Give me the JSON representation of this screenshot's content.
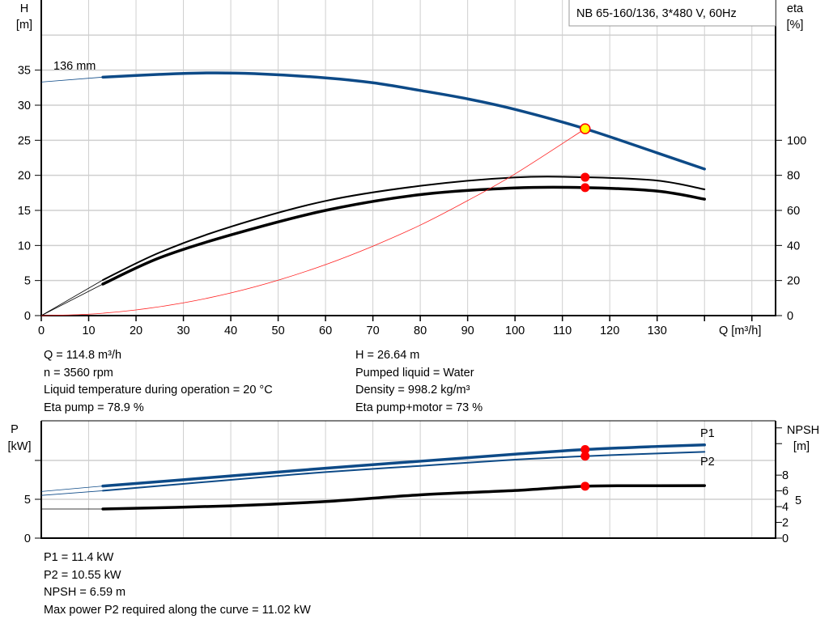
{
  "colors": {
    "head": "#0d4a87",
    "power": "#0d4a87",
    "efficiency": "#000000",
    "system": "#ff2020",
    "duty_point": "#ff0000",
    "duty_point_fill": "#ffff00",
    "grid": "#cfcfcf"
  },
  "title_box": "NB 65-160/136, 3*480 V, 60Hz",
  "chart_data": [
    {
      "type": "line",
      "title": "NB 65-160/136, 3*480 V, 60Hz",
      "xlabel": "Q [m³/h]",
      "ylabel_left": [
        "H",
        "[m]"
      ],
      "ylabel_right": [
        "eta",
        "[%]"
      ],
      "xlim": [
        0,
        155
      ],
      "ylim_left": [
        0,
        45
      ],
      "ylim_right": [
        0,
        180
      ],
      "x_ticks": [
        0,
        10,
        20,
        30,
        40,
        50,
        60,
        70,
        80,
        90,
        100,
        110,
        120,
        130
      ],
      "y_ticks_left": [
        0,
        5,
        10,
        15,
        20,
        25,
        30,
        35
      ],
      "y_ticks_right": [
        0,
        20,
        40,
        60,
        80,
        100
      ],
      "grid": true,
      "series": [
        {
          "name": "136 mm",
          "axis": "left",
          "color": "#0d4a87",
          "x": [
            0,
            13,
            25,
            35,
            45,
            60,
            70,
            80,
            90,
            100,
            114.8,
            130,
            140
          ],
          "y": [
            33.3,
            34.0,
            34.4,
            34.6,
            34.5,
            33.9,
            33.2,
            32.1,
            30.9,
            29.4,
            26.64,
            23.2,
            20.9
          ]
        },
        {
          "axis": "right",
          "color": "#000000",
          "x": [
            0,
            13,
            25,
            40,
            60,
            80,
            100,
            114.8,
            130,
            140
          ],
          "y": [
            0,
            20.3,
            36,
            50.7,
            65.4,
            74,
            78.8,
            78.9,
            77,
            72
          ]
        },
        {
          "axis": "right",
          "color": "#000000",
          "x": [
            0,
            13,
            25,
            40,
            60,
            80,
            100,
            114.8,
            130,
            140
          ],
          "y": [
            0,
            18,
            33,
            46,
            60,
            69,
            72.8,
            73,
            71,
            66.4
          ]
        },
        {
          "axis": "left",
          "color": "#ff2020",
          "x": [
            0,
            10,
            20,
            30,
            40,
            50,
            60,
            70,
            80,
            90,
            100,
            114.8
          ],
          "y": [
            0,
            0.2,
            0.81,
            1.82,
            3.23,
            5.05,
            7.27,
            9.9,
            12.9,
            16.4,
            20.2,
            26.64
          ]
        }
      ],
      "duty_points": [
        {
          "x": 114.8,
          "y": 26.64,
          "axis": "left"
        },
        {
          "x": 114.8,
          "y": 78.9,
          "axis": "right"
        },
        {
          "x": 114.8,
          "y": 73,
          "axis": "right"
        }
      ],
      "annotations": [
        "136 mm"
      ]
    },
    {
      "type": "line",
      "ylabel_left": [
        "P",
        "[kW]"
      ],
      "ylabel_right": [
        "NPSH",
        "[m]"
      ],
      "xlim": [
        0,
        155
      ],
      "ylim_left": [
        0,
        15.1
      ],
      "ylim_right": [
        0,
        14.9
      ],
      "y_ticks_left": [
        0,
        5,
        10
      ],
      "y_tick_labels_left": [
        "0",
        "5",
        ""
      ],
      "y_ticks_right": [
        0,
        2,
        4,
        6,
        8,
        12,
        14
      ],
      "y_tick_labels_right": [
        "0",
        "2",
        "4",
        "6",
        "8",
        "",
        ""
      ],
      "right_extra_label": "5",
      "grid": true,
      "series": [
        {
          "name": "P1",
          "axis": "left",
          "color": "#0d4a87",
          "x": [
            0,
            13,
            40,
            60,
            80,
            100,
            114.8,
            130,
            140
          ],
          "y": [
            6.0,
            6.7,
            8.0,
            9.0,
            9.9,
            10.8,
            11.4,
            11.8,
            12.0
          ]
        },
        {
          "name": "P2",
          "axis": "left",
          "color": "#0d4a87",
          "x": [
            0,
            13,
            40,
            60,
            80,
            100,
            114.8,
            130,
            140
          ],
          "y": [
            5.5,
            6.1,
            7.5,
            8.5,
            9.3,
            10.1,
            10.55,
            10.9,
            11.1
          ]
        },
        {
          "axis": "right",
          "color": "#000000",
          "x": [
            0,
            13,
            40,
            60,
            80,
            100,
            114.8,
            130,
            140
          ],
          "y": [
            3.7,
            3.7,
            4.1,
            4.65,
            5.5,
            6.05,
            6.59,
            6.65,
            6.67
          ]
        }
      ],
      "duty_points": [
        {
          "x": 114.8,
          "y": 11.4,
          "axis": "left"
        },
        {
          "x": 114.8,
          "y": 10.55,
          "axis": "left"
        },
        {
          "x": 114.8,
          "y": 6.59,
          "axis": "right"
        }
      ]
    }
  ],
  "operating_info": {
    "left": [
      "Q = 114.8 m³/h",
      "n = 3560 rpm",
      "Liquid temperature during operation = 20 °C",
      "Eta pump = 78.9 %"
    ],
    "right": [
      "H = 26.64 m",
      "Pumped liquid = Water",
      "Density = 998.2 kg/m³",
      "Eta pump+motor = 73 %"
    ]
  },
  "power_info": [
    "P1 = 11.4 kW",
    "P2 = 10.55 kW",
    "NPSH = 6.59 m",
    "Max power P2 required along the curve = 11.02 kW"
  ]
}
